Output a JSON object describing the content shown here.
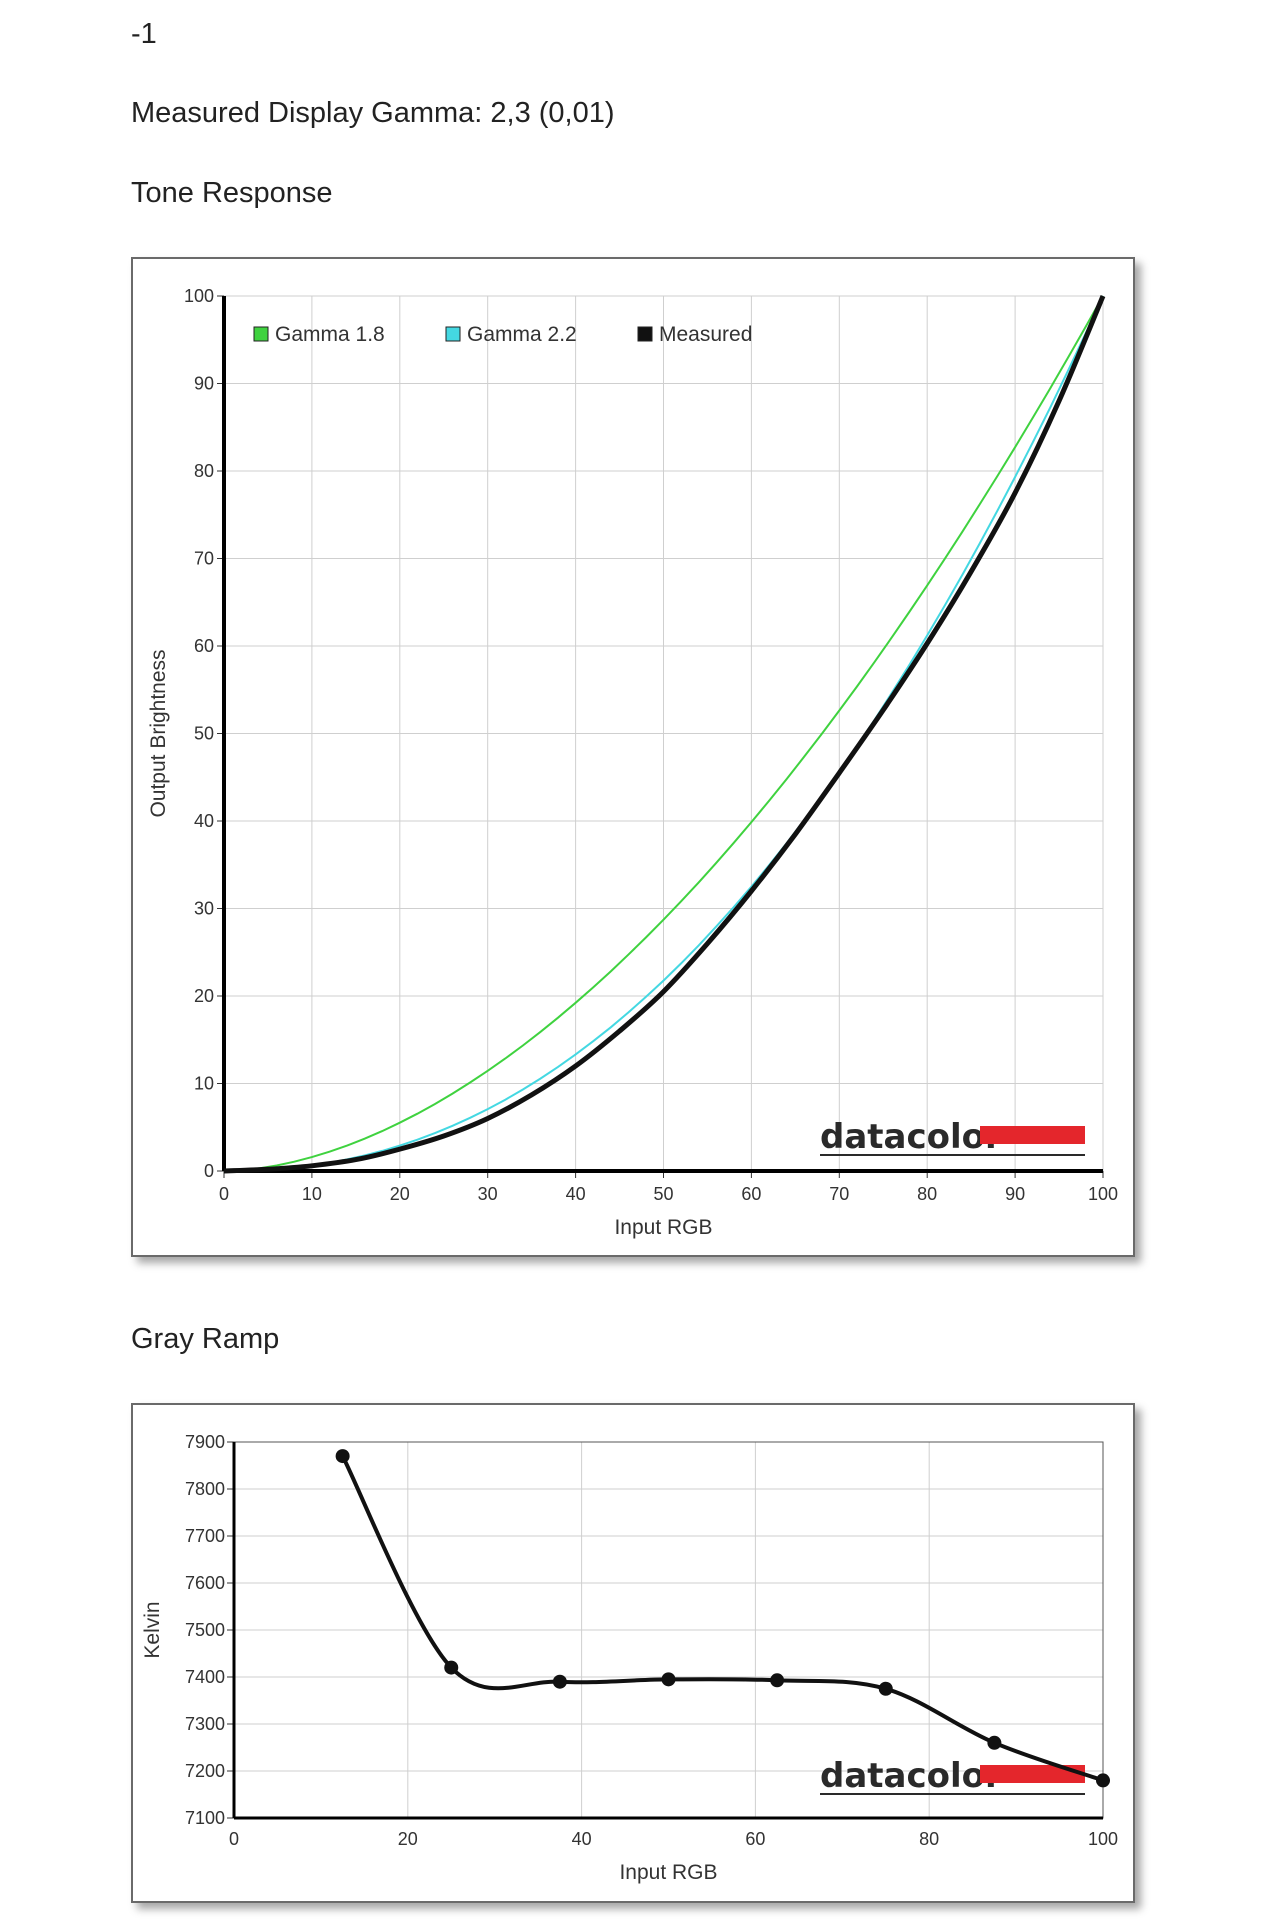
{
  "header": {
    "label": "-1",
    "gamma_line": "Measured Display Gamma: 2,3 (0,01)"
  },
  "sections": {
    "tone_title": "Tone Response",
    "gray_title": "Gray Ramp"
  },
  "logo": {
    "text": "datacolor",
    "accent_color": "#e4262c"
  },
  "chart_data": [
    {
      "type": "line",
      "xlabel": "Input RGB",
      "ylabel": "Output Brightness",
      "xlim": [
        0,
        100
      ],
      "ylim": [
        0,
        100
      ],
      "xticks": [
        0,
        10,
        20,
        30,
        40,
        50,
        60,
        70,
        80,
        90,
        100
      ],
      "yticks": [
        0,
        10,
        20,
        30,
        40,
        50,
        60,
        70,
        80,
        90,
        100
      ],
      "grid": true,
      "legend": "top-left",
      "series": [
        {
          "name": "Gamma 1.8",
          "color": "#3fd23f",
          "gamma": 1.8
        },
        {
          "name": "Gamma 2.2",
          "color": "#44d8e2",
          "gamma": 2.2
        },
        {
          "name": "Measured",
          "color": "#111111",
          "x": [
            0,
            5,
            10,
            15,
            20,
            25,
            30,
            35,
            40,
            45,
            50,
            55,
            60,
            65,
            70,
            75,
            80,
            85,
            90,
            95,
            100
          ],
          "y": [
            0,
            0.2,
            0.6,
            1.3,
            2.5,
            4,
            6,
            8.7,
            12,
            16,
            20.5,
            26,
            32,
            38.5,
            45.5,
            52.7,
            60.3,
            68.5,
            77.5,
            88,
            100
          ]
        }
      ]
    },
    {
      "type": "line",
      "xlabel": "Input RGB",
      "ylabel": "Kelvin",
      "xlim": [
        0,
        100
      ],
      "ylim": [
        7100,
        7900
      ],
      "xticks": [
        0,
        20,
        40,
        60,
        80,
        100
      ],
      "yticks": [
        7100,
        7200,
        7300,
        7400,
        7500,
        7600,
        7700,
        7800,
        7900
      ],
      "grid": true,
      "series": [
        {
          "name": "",
          "color": "#111111",
          "x": [
            12.5,
            25,
            37.5,
            50,
            62.5,
            75,
            87.5,
            100
          ],
          "y": [
            7870,
            7420,
            7390,
            7395,
            7393,
            7375,
            7260,
            7180
          ]
        }
      ]
    }
  ]
}
